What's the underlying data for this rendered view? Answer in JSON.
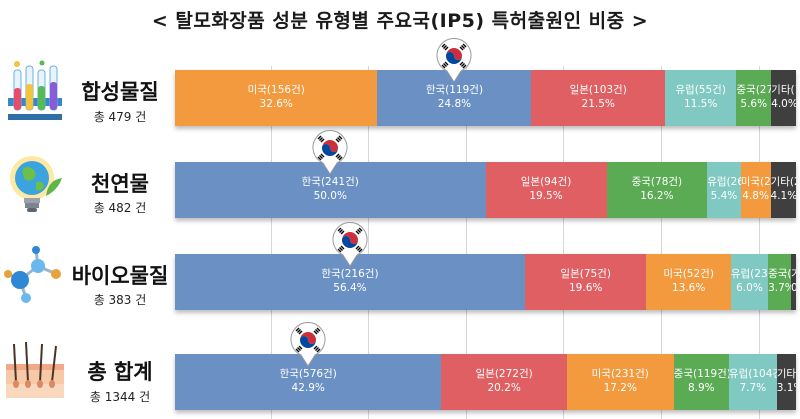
{
  "title": "< 탈모화장품 성분 유형별 주요국(IP5) 특허출원인 비중 >",
  "colors": {
    "한국": "#6b91c4",
    "미국": "#f29a3d",
    "일본": "#e05f63",
    "중국": "#5bab55",
    "유럽": "#7fc9c2",
    "기타": "#3f3f3f"
  },
  "rows": [
    {
      "label": "합성물질",
      "total": "총 479 건",
      "icon": "test-tubes-icon",
      "segments": [
        {
          "name": "미국(156건)",
          "pct": "32.6%",
          "country": "미국"
        },
        {
          "name": "한국(119건)",
          "pct": "24.8%",
          "country": "한국"
        },
        {
          "name": "일본(103건)",
          "pct": "21.5%",
          "country": "일본"
        },
        {
          "name": "유럽(55건)",
          "pct": "11.5%",
          "country": "유럽"
        },
        {
          "name": "중국(27건)",
          "pct": "5.6%",
          "country": "중국"
        },
        {
          "name": "기타(19건)",
          "pct": "4.0%",
          "country": "기타"
        }
      ]
    },
    {
      "label": "천연물",
      "total": "총 482 건",
      "icon": "earth-bulb-icon",
      "segments": [
        {
          "name": "한국(241건)",
          "pct": "50.0%",
          "country": "한국"
        },
        {
          "name": "일본(94건)",
          "pct": "19.5%",
          "country": "일본"
        },
        {
          "name": "중국(78건)",
          "pct": "16.2%",
          "country": "중국"
        },
        {
          "name": "유럽(26건)",
          "pct": "5.4%",
          "country": "유럽"
        },
        {
          "name": "미국(23건)",
          "pct": "4.8%",
          "country": "미국"
        },
        {
          "name": "기타(20건)",
          "pct": "4.1%",
          "country": "기타"
        }
      ]
    },
    {
      "label": "바이오물질",
      "total": "총 383 건",
      "icon": "molecule-icon",
      "segments": [
        {
          "name": "한국(216건)",
          "pct": "56.4%",
          "country": "한국"
        },
        {
          "name": "일본(75건)",
          "pct": "19.6%",
          "country": "일본"
        },
        {
          "name": "미국(52건)",
          "pct": "13.6%",
          "country": "미국"
        },
        {
          "name": "유럽(23건)",
          "pct": "6.0%",
          "country": "유럽"
        },
        {
          "name": "중국(14건)",
          "pct": "3.7%",
          "country": "중국"
        },
        {
          "name": "기타(3건)",
          "pct": "0.8%",
          "country": "기타"
        }
      ]
    },
    {
      "label": "총 합계",
      "total": "총 1344 건",
      "icon": "hair-follicle-icon",
      "segments": [
        {
          "name": "한국(576건)",
          "pct": "42.9%",
          "country": "한국"
        },
        {
          "name": "일본(272건)",
          "pct": "20.2%",
          "country": "일본"
        },
        {
          "name": "미국(231건)",
          "pct": "17.2%",
          "country": "미국"
        },
        {
          "name": "중국(119건)",
          "pct": "8.9%",
          "country": "중국"
        },
        {
          "name": "유럽(104건)",
          "pct": "7.7%",
          "country": "유럽"
        },
        {
          "name": "기타(42건)",
          "pct": "3.1%",
          "country": "기타"
        }
      ]
    }
  ],
  "chart_data": {
    "type": "bar",
    "stacked": true,
    "orientation": "horizontal",
    "normalized": true,
    "title": "< 탈모화장품 성분 유형별 주요국(IP5) 특허출원인 비중 >",
    "categories": [
      "합성물질",
      "천연물",
      "바이오물질",
      "총 합계"
    ],
    "totals": [
      479,
      482,
      383,
      1344
    ],
    "series": [
      {
        "name": "한국",
        "counts": [
          119,
          241,
          216,
          576
        ],
        "values": [
          24.8,
          50.0,
          56.4,
          42.9
        ]
      },
      {
        "name": "미국",
        "counts": [
          156,
          23,
          52,
          231
        ],
        "values": [
          32.6,
          4.8,
          13.6,
          17.2
        ]
      },
      {
        "name": "일본",
        "counts": [
          103,
          94,
          75,
          272
        ],
        "values": [
          21.5,
          19.5,
          19.6,
          20.2
        ]
      },
      {
        "name": "중국",
        "counts": [
          27,
          78,
          14,
          119
        ],
        "values": [
          5.6,
          16.2,
          3.7,
          8.9
        ]
      },
      {
        "name": "유럽",
        "counts": [
          55,
          26,
          23,
          104
        ],
        "values": [
          11.5,
          5.4,
          6.0,
          7.7
        ]
      },
      {
        "name": "기타",
        "counts": [
          19,
          20,
          3,
          42
        ],
        "values": [
          4.0,
          4.1,
          0.8,
          3.1
        ]
      }
    ],
    "segment_order": [
      [
        "미국",
        "한국",
        "일본",
        "유럽",
        "중국",
        "기타"
      ],
      [
        "한국",
        "일본",
        "중국",
        "유럽",
        "미국",
        "기타"
      ],
      [
        "한국",
        "일본",
        "미국",
        "유럽",
        "중국",
        "기타"
      ],
      [
        "한국",
        "일본",
        "미국",
        "중국",
        "유럽",
        "기타"
      ]
    ],
    "xlim": [
      0,
      100
    ],
    "grid": true,
    "legend": "none"
  }
}
